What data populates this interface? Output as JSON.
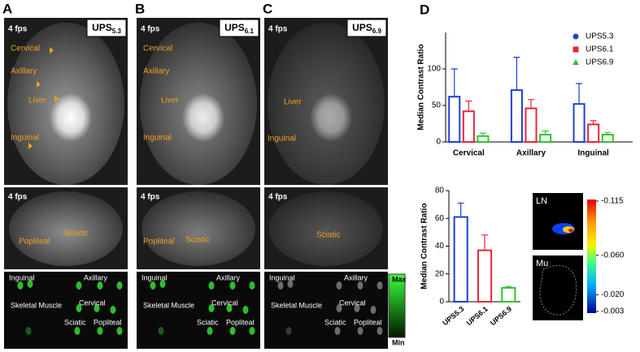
{
  "panels": [
    {
      "letter": "A",
      "fps_top": "4 fps",
      "fps_mid": "4 fps",
      "ups": "UPS",
      "ups_sub": "5.3",
      "top_labels": [
        "Cervical",
        "Axillary",
        "Liver",
        "Inguinal"
      ],
      "mid_labels": [
        "Popliteal",
        "Sciatic"
      ],
      "bottom_labels": [
        "Inguinal",
        "Axillary",
        "Skeletal Muscle",
        "Cervical",
        "Sciatic",
        "Popliteal"
      ]
    },
    {
      "letter": "B",
      "fps_top": "4 fps",
      "fps_mid": "4 fps",
      "ups": "UPS",
      "ups_sub": "6.1",
      "top_labels": [
        "Cervical",
        "Axillary",
        "Liver",
        "Inguinal"
      ],
      "mid_labels": [
        "Popliteal",
        "Sciatic"
      ],
      "bottom_labels": [
        "Inguinal",
        "Axillary",
        "Skeletal Muscle",
        "Cervical",
        "Sciatic",
        "Popliteal"
      ]
    },
    {
      "letter": "C",
      "fps_top": "4 fps",
      "fps_mid": "4 fps",
      "ups": "UPS",
      "ups_sub": "6.9",
      "top_labels": [
        "Liver",
        "Inguinal"
      ],
      "mid_labels": [
        "Sciatic"
      ],
      "bottom_labels": [
        "Inguinal",
        "Axillary",
        "Skeletal Muscle",
        "Cervical",
        "Sciatic",
        "Popliteal"
      ]
    }
  ],
  "fluorescence_scale": {
    "max": "Max",
    "min": "Min"
  },
  "panel_d": {
    "letter": "D"
  },
  "chart_data": [
    {
      "type": "bar",
      "y_label": "Median Contrast Ratio",
      "categories": [
        "Cervical",
        "Axillary",
        "Inguinal"
      ],
      "series": [
        {
          "name": "UPS5.3",
          "color": "#1f3fd6",
          "values": [
            62,
            71,
            52
          ],
          "errors": [
            38,
            45,
            28
          ]
        },
        {
          "name": "UPS6.1",
          "color": "#e8253a",
          "values": [
            42,
            46,
            24
          ],
          "errors": [
            14,
            12,
            5
          ]
        },
        {
          "name": "UPS6.9",
          "color": "#2ec42e",
          "values": [
            8,
            10,
            10
          ],
          "errors": [
            4,
            5,
            3
          ]
        }
      ],
      "ylim": [
        0,
        150
      ],
      "yticks": [
        0,
        50,
        100
      ],
      "legend": "top-right"
    },
    {
      "type": "bar",
      "y_label": "Median Contrast Ratio",
      "categories": [
        "UPS5.3",
        "UPS6.1",
        "UPS6.9"
      ],
      "values": [
        61,
        37,
        10
      ],
      "errors": [
        10,
        11,
        1
      ],
      "colors": [
        "#1f3fd6",
        "#e8253a",
        "#2ec42e"
      ],
      "ylim": [
        0,
        80
      ],
      "yticks": [
        0,
        20,
        40,
        60,
        80
      ]
    }
  ],
  "heatmap": {
    "ln": "LN",
    "mu": "Mu",
    "lim": [
      -0.115,
      -0.003
    ],
    "colorbar_ticks": [
      -0.115,
      {
        "value": -0.06,
        "label": "-0.060"
      },
      {
        "value": -0.02,
        "label": "-0.020"
      },
      -0.003
    ]
  }
}
